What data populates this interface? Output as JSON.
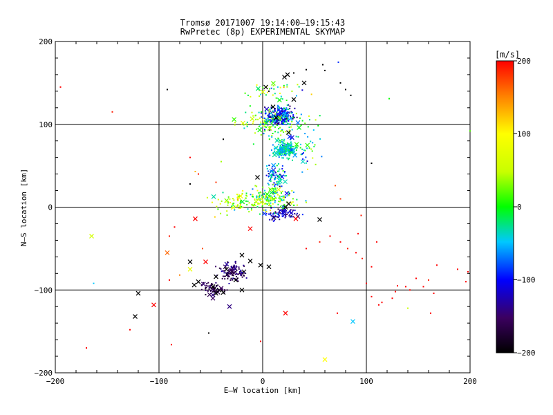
{
  "chart_data": {
    "type": "scatter",
    "title": "Tromsø 20171007 19:14:00–19:15:43",
    "subtitle": "RwPretec (8p) EXPERIMENTAL SKYMAP",
    "xlabel": "E–W location [km]",
    "ylabel": "N–S location [km]",
    "xlim": [
      -200,
      200
    ],
    "ylim": [
      -200,
      200
    ],
    "x_ticks": [
      -200,
      -100,
      0,
      100,
      200
    ],
    "y_ticks": [
      -200,
      -100,
      0,
      100,
      200
    ],
    "x_tick_labels": [
      "−200",
      "−100",
      "0",
      "100",
      "200"
    ],
    "y_tick_labels": [
      "−200",
      "−100",
      "0",
      "100",
      "200"
    ],
    "grid": true,
    "colorbar": {
      "label": "[m/s]",
      "min": -200,
      "max": 200,
      "ticks": [
        200,
        100,
        0,
        -100,
        -200
      ],
      "tick_labels": [
        "200",
        "100",
        "0",
        "−100",
        "−200"
      ]
    },
    "series": [
      {
        "marker": "cross",
        "points": [
          [
            21,
            157,
            -200
          ],
          [
            24,
            160,
            -200
          ],
          [
            3,
            145,
            -200
          ],
          [
            40,
            150,
            -200
          ],
          [
            30,
            130,
            -200
          ],
          [
            10,
            121,
            -200
          ],
          [
            13,
            108,
            -200
          ],
          [
            25,
            90,
            -200
          ],
          [
            -5,
            36,
            -200
          ],
          [
            25,
            4,
            -200
          ],
          [
            22,
            0,
            -200
          ],
          [
            55,
            -15,
            -200
          ],
          [
            -2,
            -70,
            -200
          ],
          [
            6,
            -72,
            -200
          ],
          [
            -12,
            -65,
            -200
          ],
          [
            -20,
            -58,
            -200
          ],
          [
            -70,
            -66,
            -200
          ],
          [
            -35,
            -75,
            -200
          ],
          [
            -26,
            -88,
            -200
          ],
          [
            -45,
            -84,
            -200
          ],
          [
            -66,
            -94,
            -200
          ],
          [
            -62,
            -90,
            -200
          ],
          [
            -48,
            -96,
            -200
          ],
          [
            -42,
            -100,
            -200
          ],
          [
            -38,
            -103,
            -200
          ],
          [
            -45,
            -104,
            -200
          ],
          [
            -20,
            -100,
            -200
          ],
          [
            -120,
            -104,
            -200
          ],
          [
            -123,
            -132,
            -200
          ],
          [
            -12,
            -26,
            200
          ],
          [
            -65,
            -14,
            200
          ],
          [
            -55,
            -66,
            200
          ],
          [
            -92,
            -55,
            160
          ],
          [
            -70,
            -75,
            80
          ],
          [
            -105,
            -118,
            200
          ],
          [
            32,
            -14,
            200
          ],
          [
            22,
            -128,
            200
          ],
          [
            -165,
            -35,
            60
          ],
          [
            60,
            -184,
            100
          ],
          [
            87,
            -138,
            -50
          ],
          [
            -48,
            -110,
            -150
          ],
          [
            -32,
            -120,
            -140
          ],
          [
            -48,
            -106,
            -140
          ],
          [
            -40,
            -98,
            -150
          ],
          [
            18,
            70,
            -60
          ],
          [
            15,
            112,
            -100
          ],
          [
            20,
            105,
            -110
          ],
          [
            26,
            85,
            -90
          ],
          [
            34,
            102,
            -70
          ]
        ]
      },
      {
        "marker": "dot",
        "points": [
          [
            -195,
            145,
            200
          ],
          [
            -145,
            115,
            190
          ],
          [
            -92,
            142,
            -200
          ],
          [
            -70,
            28,
            -200
          ],
          [
            -38,
            82,
            -200
          ],
          [
            6,
            140,
            -200
          ],
          [
            30,
            162,
            -200
          ],
          [
            42,
            166,
            -200
          ],
          [
            58,
            172,
            -200
          ],
          [
            60,
            165,
            -200
          ],
          [
            73,
            175,
            -90
          ],
          [
            75,
            150,
            -200
          ],
          [
            80,
            142,
            -200
          ],
          [
            85,
            135,
            -200
          ],
          [
            105,
            53,
            -200
          ],
          [
            122,
            131,
            0
          ],
          [
            -70,
            60,
            200
          ],
          [
            -62,
            40,
            190
          ],
          [
            -45,
            30,
            180
          ],
          [
            70,
            26,
            170
          ],
          [
            75,
            10,
            180
          ],
          [
            95,
            -10,
            190
          ],
          [
            92,
            -32,
            200
          ],
          [
            110,
            -42,
            200
          ],
          [
            65,
            -35,
            200
          ],
          [
            55,
            -42,
            190
          ],
          [
            75,
            -42,
            200
          ],
          [
            82,
            -50,
            190
          ],
          [
            90,
            -55,
            200
          ],
          [
            96,
            -62,
            190
          ],
          [
            105,
            -72,
            200
          ],
          [
            100,
            -92,
            200
          ],
          [
            105,
            -108,
            200
          ],
          [
            112,
            -118,
            200
          ],
          [
            115,
            -115,
            200
          ],
          [
            128,
            -102,
            200
          ],
          [
            125,
            -110,
            200
          ],
          [
            130,
            -95,
            200
          ],
          [
            138,
            -96,
            200
          ],
          [
            142,
            -100,
            200
          ],
          [
            148,
            -86,
            200
          ],
          [
            155,
            -96,
            200
          ],
          [
            160,
            -88,
            190
          ],
          [
            165,
            -104,
            200
          ],
          [
            168,
            -70,
            200
          ],
          [
            188,
            -75,
            200
          ],
          [
            198,
            -78,
            200
          ],
          [
            196,
            -90,
            200
          ],
          [
            200,
            92,
            20
          ],
          [
            -163,
            -92,
            -50
          ],
          [
            -170,
            -170,
            200
          ],
          [
            -128,
            -148,
            200
          ],
          [
            -90,
            -88,
            200
          ],
          [
            -88,
            -166,
            200
          ],
          [
            -52,
            -152,
            -200
          ],
          [
            -80,
            -82,
            150
          ],
          [
            -58,
            -50,
            170
          ],
          [
            -90,
            -35,
            190
          ],
          [
            -85,
            -24,
            200
          ],
          [
            42,
            -50,
            200
          ],
          [
            140,
            -122,
            50
          ],
          [
            162,
            -128,
            200
          ],
          [
            72,
            -128,
            200
          ],
          [
            -2,
            -162,
            200
          ],
          [
            -5,
            20,
            100
          ],
          [
            -65,
            43,
            130
          ],
          [
            -40,
            55,
            40
          ]
        ]
      }
    ],
    "clusters": [
      {
        "cx": 17,
        "cy": 110,
        "sx": 12,
        "sy": 9,
        "n": 260,
        "vmean": -90,
        "vspread": 70
      },
      {
        "cx": 22,
        "cy": 70,
        "sx": 8,
        "sy": 8,
        "n": 200,
        "vmean": -40,
        "vspread": 40
      },
      {
        "cx": 5,
        "cy": 100,
        "sx": 24,
        "sy": 16,
        "n": 100,
        "vmean": 10,
        "vspread": 60
      },
      {
        "cx": 12,
        "cy": 40,
        "sx": 10,
        "sy": 15,
        "n": 80,
        "vmean": -60,
        "vspread": 70
      },
      {
        "cx": 8,
        "cy": 10,
        "sx": 22,
        "sy": 10,
        "n": 150,
        "vmean": 10,
        "vspread": 80
      },
      {
        "cx": 20,
        "cy": -8,
        "sx": 14,
        "sy": 6,
        "n": 80,
        "vmean": -120,
        "vspread": 40
      },
      {
        "cx": -20,
        "cy": 5,
        "sx": 22,
        "sy": 12,
        "n": 90,
        "vmean": 40,
        "vspread": 70
      },
      {
        "cx": -28,
        "cy": -78,
        "sx": 10,
        "sy": 10,
        "n": 110,
        "vmean": -150,
        "vspread": 30
      },
      {
        "cx": -48,
        "cy": -98,
        "sx": 9,
        "sy": 7,
        "n": 60,
        "vmean": -160,
        "vspread": 20
      },
      {
        "cx": 15,
        "cy": 140,
        "sx": 25,
        "sy": 10,
        "n": 40,
        "vmean": 40,
        "vspread": 100
      },
      {
        "cx": 42,
        "cy": 80,
        "sx": 14,
        "sy": 30,
        "n": 50,
        "vmean": -20,
        "vspread": 80
      }
    ]
  }
}
